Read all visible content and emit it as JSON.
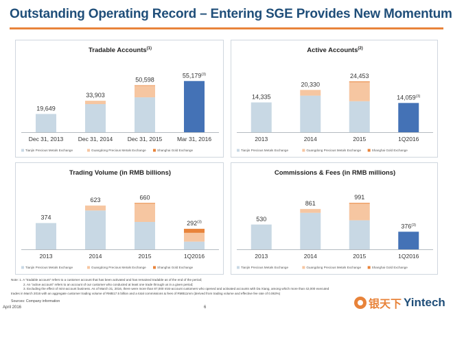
{
  "slide": {
    "title": "Outstanding Operating Record – Entering SGE Provides New Momentum",
    "notes": [
      "Note: 1. A “tradable account” refers to a customer account that has been activated and has remained tradable as of the end of the period;",
      "2. An “active account” refers to an account of our customer who conducted at least one trade through us in a given period;",
      "3. Excluding the effect of mini-account business. As of March 31, 2016, there were more than 87,000 mini-account customers who opened and activated accounts with Da Xiang, among which more than 42,000 executed",
      "trades in March 2016 with an aggregate customer trading volume of RMB17.5 billion and a total commissions & fees of RMB11mm (derived from trading volume and effective fee rate of 0.063%)"
    ],
    "sources": "Sources: Company information",
    "footer_date": "April 2016",
    "page_number": "6",
    "logo_cn": "银天下",
    "logo_en": "Yintech"
  },
  "colors": {
    "tianjin": "#c8d8e4",
    "guangdong": "#f6c6a1",
    "shanghai": "#e8833a",
    "highlight": "#4472b6",
    "title": "#1f4e79"
  },
  "legend": [
    "Tianjin Precious Metals Exchange",
    "Guangdong Precious Metals Exchange",
    "Shanghai Gold Exchange"
  ],
  "chart_data": [
    {
      "type": "bar",
      "title": "Tradable Accounts",
      "title_sup": "(1)",
      "categories": [
        "Dec 31, 2013",
        "Dec 31, 2014",
        "Dec 31, 2015",
        "Mar 31, 2016"
      ],
      "totals": [
        "19,649",
        "33,903",
        "50,598",
        "55,179"
      ],
      "total_sups": [
        "",
        "",
        "",
        "(3)"
      ],
      "series": [
        {
          "name": "Tianjin Precious Metals Exchange",
          "values": [
            19649,
            30300,
            37600,
            0
          ]
        },
        {
          "name": "Guangdong Precious Metals Exchange",
          "values": [
            0,
            3603,
            12400,
            0
          ]
        },
        {
          "name": "Shanghai Gold Exchange",
          "values": [
            0,
            0,
            598,
            0
          ]
        }
      ],
      "highlight_values": [
        0,
        0,
        0,
        55179
      ],
      "ylim": [
        0,
        65000
      ]
    },
    {
      "type": "bar",
      "title": "Active Accounts",
      "title_sup": "(2)",
      "categories": [
        "2013",
        "2014",
        "2015",
        "1Q2016"
      ],
      "totals": [
        "14,335",
        "20,330",
        "24,453",
        "14,059"
      ],
      "total_sups": [
        "",
        "",
        "",
        "(3)"
      ],
      "series": [
        {
          "name": "Tianjin Precious Metals Exchange",
          "values": [
            14335,
            17600,
            14900,
            0
          ]
        },
        {
          "name": "Guangdong Precious Metals Exchange",
          "values": [
            0,
            2730,
            9200,
            0
          ]
        },
        {
          "name": "Shanghai Gold Exchange",
          "values": [
            0,
            0,
            353,
            0
          ]
        }
      ],
      "highlight_values": [
        0,
        0,
        0,
        14059
      ],
      "ylim": [
        0,
        29000
      ]
    },
    {
      "type": "bar",
      "title": "Trading Volume (in RMB billions)",
      "title_sup": "",
      "categories": [
        "2013",
        "2014",
        "2015",
        "1Q2016"
      ],
      "totals": [
        "374",
        "623",
        "660",
        "292"
      ],
      "total_sups": [
        "",
        "",
        "",
        "(3)"
      ],
      "series": [
        {
          "name": "Tianjin Precious Metals Exchange",
          "values": [
            374,
            553,
            390,
            110
          ]
        },
        {
          "name": "Guangdong Precious Metals Exchange",
          "values": [
            0,
            70,
            260,
            125
          ]
        },
        {
          "name": "Shanghai Gold Exchange",
          "values": [
            0,
            0,
            10,
            57
          ]
        }
      ],
      "highlight_values": [
        0,
        0,
        0,
        0
      ],
      "ylim": [
        0,
        780
      ]
    },
    {
      "type": "bar",
      "title": "Commissions & Fees (in RMB millions)",
      "title_sup": "",
      "categories": [
        "2013",
        "2014",
        "2015",
        "1Q2016"
      ],
      "totals": [
        "530",
        "861",
        "991",
        "376"
      ],
      "total_sups": [
        "",
        "",
        "",
        "(3)"
      ],
      "series": [
        {
          "name": "Tianjin Precious Metals Exchange",
          "values": [
            530,
            780,
            620,
            0
          ]
        },
        {
          "name": "Guangdong Precious Metals Exchange",
          "values": [
            0,
            81,
            355,
            0
          ]
        },
        {
          "name": "Shanghai Gold Exchange",
          "values": [
            0,
            0,
            16,
            0
          ]
        }
      ],
      "highlight_values": [
        0,
        0,
        0,
        376
      ],
      "ylim": [
        0,
        1170
      ]
    }
  ]
}
